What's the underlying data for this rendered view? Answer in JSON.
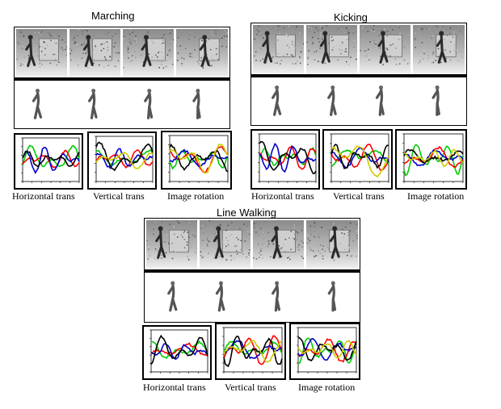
{
  "groups": [
    {
      "title": "Marching",
      "captions": [
        "Horizontal trans",
        "Vertical trans",
        "Image rotation"
      ]
    },
    {
      "title": "Kicking",
      "captions": [
        "Horizontal trans",
        "Vertical trans",
        "Image rotation"
      ]
    },
    {
      "title": "Line Walking",
      "captions": [
        "Horizontal trans",
        "Vertical trans",
        "Image rotation"
      ]
    }
  ],
  "series_colors": [
    "#00cc00",
    "#ff0000",
    "#0000cc",
    "#000000",
    "#cccc00"
  ]
}
